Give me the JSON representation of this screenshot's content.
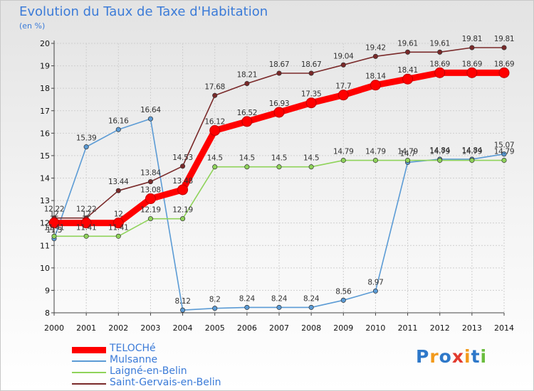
{
  "chart_data": {
    "type": "line",
    "title": "Evolution du Taux de Taxe d'Habitation",
    "ylabel": "(en %)",
    "xlabel": "",
    "x": [
      2000,
      2001,
      2002,
      2003,
      2004,
      2005,
      2006,
      2007,
      2008,
      2009,
      2010,
      2011,
      2012,
      2013,
      2014
    ],
    "ylim": [
      8,
      20
    ],
    "yticks": [
      8,
      9,
      10,
      11,
      12,
      13,
      14,
      15,
      16,
      17,
      18,
      19,
      20
    ],
    "grid": true,
    "legend_position": "bottom-left",
    "series": [
      {
        "name": "TELOCHé",
        "color": "#ff0000",
        "emphasis": true,
        "values": [
          12,
          12,
          12,
          13.08,
          13.48,
          16.12,
          16.52,
          16.93,
          17.35,
          17.7,
          18.14,
          18.41,
          18.69,
          18.69,
          18.69
        ]
      },
      {
        "name": "Mulsanne",
        "color": "#5b9bd5",
        "values": [
          11.3,
          15.39,
          16.16,
          16.64,
          8.12,
          8.2,
          8.24,
          8.24,
          8.24,
          8.56,
          8.97,
          14.7,
          14.84,
          14.84,
          15.07
        ]
      },
      {
        "name": "Laigné-en-Belin",
        "color": "#8fd35a",
        "values": [
          11.41,
          11.41,
          11.41,
          12.19,
          12.19,
          14.5,
          14.5,
          14.5,
          14.5,
          14.79,
          14.79,
          14.79,
          14.79,
          14.79,
          14.79
        ]
      },
      {
        "name": "Saint-Gervais-en-Belin",
        "color": "#7a2a2a",
        "values": [
          12.22,
          12.22,
          13.44,
          13.84,
          14.53,
          17.68,
          18.21,
          18.67,
          18.67,
          19.04,
          19.42,
          19.61,
          19.61,
          19.81,
          19.81
        ]
      }
    ]
  },
  "branding": {
    "logo_text": "Proxiti"
  }
}
